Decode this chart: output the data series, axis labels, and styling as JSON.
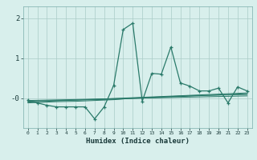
{
  "xlabel": "Humidex (Indice chaleur)",
  "x": [
    0,
    1,
    2,
    3,
    4,
    5,
    6,
    7,
    8,
    9,
    10,
    11,
    12,
    13,
    14,
    15,
    16,
    17,
    18,
    19,
    20,
    21,
    22,
    23
  ],
  "y_main": [
    -0.05,
    -0.12,
    -0.18,
    -0.22,
    -0.22,
    -0.22,
    -0.22,
    -0.52,
    -0.22,
    0.32,
    1.72,
    1.88,
    -0.08,
    0.62,
    0.6,
    1.28,
    0.38,
    0.3,
    0.18,
    0.18,
    0.25,
    -0.12,
    0.28,
    0.18
  ],
  "y_line1": [
    -0.1,
    -0.09,
    -0.08,
    -0.07,
    -0.06,
    -0.05,
    -0.04,
    -0.03,
    -0.02,
    -0.01,
    0.0,
    0.01,
    0.02,
    0.03,
    0.04,
    0.05,
    0.06,
    0.07,
    0.08,
    0.09,
    0.1,
    0.11,
    0.12,
    0.13
  ],
  "y_line2": [
    -0.08,
    -0.07,
    -0.065,
    -0.06,
    -0.055,
    -0.05,
    -0.045,
    -0.04,
    -0.035,
    -0.03,
    -0.02,
    -0.01,
    0.0,
    0.01,
    0.02,
    0.03,
    0.04,
    0.05,
    0.06,
    0.07,
    0.08,
    0.09,
    0.1,
    0.11
  ],
  "y_line3": [
    -0.12,
    -0.11,
    -0.1,
    -0.09,
    -0.085,
    -0.08,
    -0.07,
    -0.06,
    -0.05,
    -0.04,
    -0.02,
    0.0,
    0.01,
    0.02,
    0.03,
    0.04,
    0.05,
    0.06,
    0.065,
    0.07,
    0.075,
    0.08,
    0.085,
    0.09
  ],
  "y_line4": [
    -0.06,
    -0.055,
    -0.05,
    -0.045,
    -0.04,
    -0.035,
    -0.03,
    -0.025,
    -0.02,
    -0.015,
    -0.01,
    -0.005,
    0.0,
    0.005,
    0.01,
    0.015,
    0.02,
    0.025,
    0.03,
    0.035,
    0.04,
    0.045,
    0.05,
    0.055
  ],
  "line_color": "#2a7a6a",
  "bg_color": "#d8efec",
  "grid_color": "#aaccc8",
  "ylim": [
    -0.75,
    2.3
  ],
  "xlim": [
    -0.5,
    23.5
  ]
}
